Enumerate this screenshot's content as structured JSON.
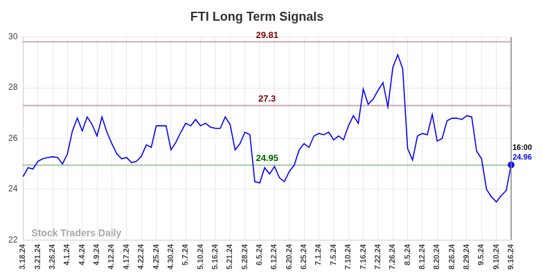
{
  "chart_data": {
    "type": "line",
    "title": "FTI Long Term Signals",
    "categories": [
      "3.18.24",
      null,
      null,
      "3.21.24",
      null,
      null,
      "3.26.24",
      null,
      null,
      "4.1.24",
      null,
      null,
      "4.4.24",
      null,
      null,
      "4.9.24",
      null,
      null,
      "4.12.24",
      null,
      null,
      "4.17.24",
      null,
      null,
      "4.22.24",
      null,
      null,
      "4.25.24",
      null,
      null,
      "4.30.24",
      null,
      null,
      "5.7.24",
      null,
      null,
      "5.10.24",
      null,
      null,
      "5.16.24",
      null,
      null,
      "5.21.24",
      null,
      null,
      "5.28.24",
      null,
      null,
      "6.5.24",
      null,
      null,
      "6.12.24",
      null,
      null,
      "6.20.24",
      null,
      null,
      "6.25.24",
      null,
      null,
      "7.1.24",
      null,
      null,
      "7.5.24",
      null,
      null,
      "7.10.24",
      null,
      null,
      "7.16.24",
      null,
      null,
      "7.22.24",
      null,
      null,
      "7.26.24",
      null,
      null,
      "8.5.24",
      null,
      null,
      "8.12.24",
      null,
      null,
      "8.20.24",
      null,
      null,
      "8.26.24",
      null,
      null,
      "8.29.24",
      null,
      null,
      "9.5.24",
      null,
      null,
      "9.10.24",
      null,
      null,
      "9.16.24"
    ],
    "values": [
      24.5,
      24.85,
      24.8,
      25.1,
      25.2,
      25.25,
      25.28,
      25.25,
      25.0,
      25.4,
      26.3,
      26.8,
      26.3,
      26.85,
      26.55,
      26.1,
      26.85,
      26.25,
      25.8,
      25.4,
      25.2,
      25.25,
      25.05,
      25.1,
      25.3,
      25.75,
      25.65,
      26.5,
      26.5,
      26.5,
      25.55,
      25.85,
      26.25,
      26.6,
      26.5,
      26.75,
      26.5,
      26.6,
      26.45,
      26.4,
      26.4,
      26.85,
      26.55,
      25.55,
      25.8,
      26.25,
      26.15,
      24.3,
      24.25,
      24.85,
      24.6,
      24.9,
      24.45,
      24.3,
      24.7,
      24.95,
      25.55,
      25.8,
      25.65,
      26.1,
      26.2,
      26.15,
      26.25,
      25.95,
      26.1,
      25.95,
      26.5,
      26.9,
      26.6,
      27.95,
      27.35,
      27.55,
      27.9,
      28.2,
      27.25,
      28.8,
      29.3,
      28.75,
      25.6,
      25.15,
      26.1,
      26.2,
      26.15,
      26.95,
      25.9,
      26.0,
      26.7,
      26.8,
      26.8,
      26.75,
      26.9,
      26.85,
      25.5,
      25.2,
      24.0,
      23.7,
      23.5,
      23.75,
      23.95,
      24.96
    ],
    "color": "#0000ff",
    "ylim": [
      22,
      30
    ],
    "yticks": [
      22,
      24,
      26,
      28,
      30
    ],
    "grid": true,
    "signal_lines": [
      {
        "value": 29.81,
        "color": "#800000"
      },
      {
        "value": 27.3,
        "color": "#800000"
      },
      {
        "value": 24.95,
        "color": "#006400"
      }
    ],
    "end_annotation": {
      "text": "16:00",
      "value": 24.96
    },
    "watermark": "Stock Traders Daily"
  }
}
